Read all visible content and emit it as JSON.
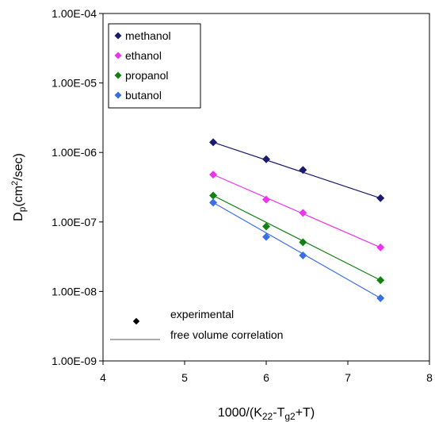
{
  "chart_data": {
    "type": "line",
    "x_axis": {
      "label_main": "1000/(K",
      "label_sub1": "22",
      "label_mid": "-T",
      "label_sub2": "g2",
      "label_end": "+T)",
      "range": [
        4,
        8
      ],
      "ticks": [
        "4",
        "5",
        "6",
        "7",
        "8"
      ],
      "tick_values": [
        4,
        5,
        6,
        7,
        8
      ]
    },
    "y_axis": {
      "label_main": "D",
      "label_sub": "p",
      "label_mid": "(cm",
      "label_sup": "2",
      "label_end": "/sec)",
      "scale": "log",
      "range": [
        1e-09,
        0.0001
      ],
      "ticks": [
        "1.00E-09",
        "1.00E-08",
        "1.00E-07",
        "1.00E-06",
        "1.00E-05",
        "1.00E-04"
      ],
      "tick_values": [
        1e-09,
        1e-08,
        1e-07,
        1e-06,
        1e-05,
        0.0001
      ]
    },
    "grid": false,
    "legend_position": "top-left",
    "series": [
      {
        "name": "methanol",
        "color": "#1a1a6e",
        "x": [
          5.35,
          6.0,
          6.45,
          7.4
        ],
        "y": [
          1.4e-06,
          8e-07,
          5.6e-07,
          2.2e-07
        ],
        "fit_x": [
          5.35,
          7.4
        ],
        "fit_y": [
          1.4e-06,
          2.2e-07
        ]
      },
      {
        "name": "ethanol",
        "color": "#ee33ee",
        "x": [
          5.35,
          6.0,
          6.45,
          7.4
        ],
        "y": [
          4.8e-07,
          2.1e-07,
          1.35e-07,
          4.3e-08
        ],
        "fit_x": [
          5.35,
          7.4
        ],
        "fit_y": [
          4.8e-07,
          4.3e-08
        ]
      },
      {
        "name": "propanol",
        "color": "#128012",
        "x": [
          5.35,
          6.0,
          6.45,
          7.4
        ],
        "y": [
          2.4e-07,
          8.6e-08,
          5.1e-08,
          1.45e-08
        ],
        "fit_x": [
          5.35,
          7.4
        ],
        "fit_y": [
          2.4e-07,
          1.45e-08
        ]
      },
      {
        "name": "butanol",
        "color": "#3a6ee8",
        "x": [
          5.35,
          6.0,
          6.45,
          7.4
        ],
        "y": [
          1.9e-07,
          6.1e-08,
          3.3e-08,
          8e-09
        ],
        "fit_x": [
          5.35,
          7.4
        ],
        "fit_y": [
          1.9e-07,
          8e-09
        ]
      }
    ],
    "key": {
      "marker_label": "experimental",
      "line_label": "free volume correlation",
      "marker_color": "#000000",
      "line_color": "#555555"
    }
  }
}
